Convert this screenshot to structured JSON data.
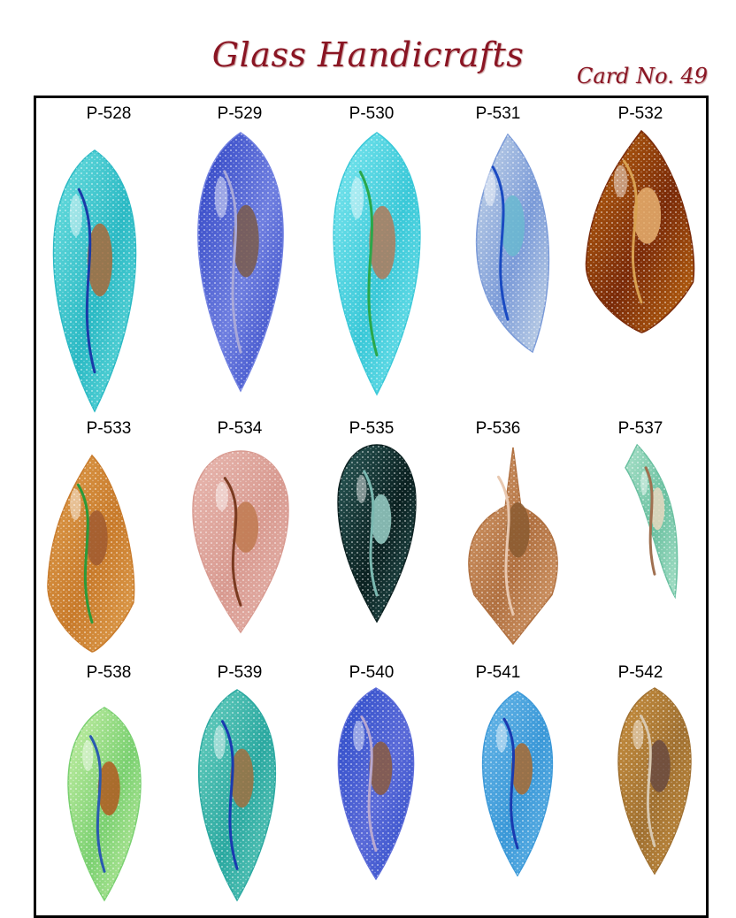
{
  "header": {
    "title": "Glass Handicrafts",
    "card_number": "Card No. 49"
  },
  "items": [
    {
      "code": "P-528",
      "colors": [
        "#6fe0e0",
        "#2ab9c4",
        "#1a3aa8",
        "#a86a3a"
      ]
    },
    {
      "code": "P-529",
      "colors": [
        "#2a3fc2",
        "#6f7fe0",
        "#a8a8d8",
        "#7a5a4a"
      ]
    },
    {
      "code": "P-530",
      "colors": [
        "#7fe8f0",
        "#39c8d8",
        "#2aa84a",
        "#b07a5a"
      ]
    },
    {
      "code": "P-531",
      "colors": [
        "#c8d8e8",
        "#7a9ad8",
        "#1a4ac2",
        "#6ab8d0"
      ]
    },
    {
      "code": "P-532",
      "colors": [
        "#c06a10",
        "#7a2a08",
        "#d8a050",
        "#e8b070"
      ]
    },
    {
      "code": "P-533",
      "colors": [
        "#e0a050",
        "#c87a2a",
        "#2a9a3a",
        "#a05a30"
      ]
    },
    {
      "code": "P-534",
      "colors": [
        "#e8b8b0",
        "#d89a90",
        "#7a3a20",
        "#c07a50"
      ]
    },
    {
      "code": "P-535",
      "colors": [
        "#2a5a58",
        "#0a2020",
        "#7ab8b0",
        "#9ad0c8"
      ]
    },
    {
      "code": "P-536",
      "colors": [
        "#d8a070",
        "#b07040",
        "#e8c8b0",
        "#8a5a30"
      ]
    },
    {
      "code": "P-537",
      "colors": [
        "#a8e0c8",
        "#6ac0a0",
        "#a07050",
        "#e8d8c0"
      ]
    },
    {
      "code": "P-538",
      "colors": [
        "#c8f0a8",
        "#7ad070",
        "#2a5ab0",
        "#b05a20"
      ]
    },
    {
      "code": "P-539",
      "colors": [
        "#6ad0c0",
        "#2aa8a0",
        "#1a3ab0",
        "#a07040"
      ]
    },
    {
      "code": "P-540",
      "colors": [
        "#2a4ac8",
        "#5a6ad8",
        "#b8a8d0",
        "#8a5a40"
      ]
    },
    {
      "code": "P-541",
      "colors": [
        "#6ab8e8",
        "#3a98d8",
        "#1a3ab0",
        "#a86a30"
      ]
    },
    {
      "code": "P-542",
      "colors": [
        "#c89040",
        "#a07030",
        "#d8c8b0",
        "#6a4a40"
      ]
    }
  ]
}
